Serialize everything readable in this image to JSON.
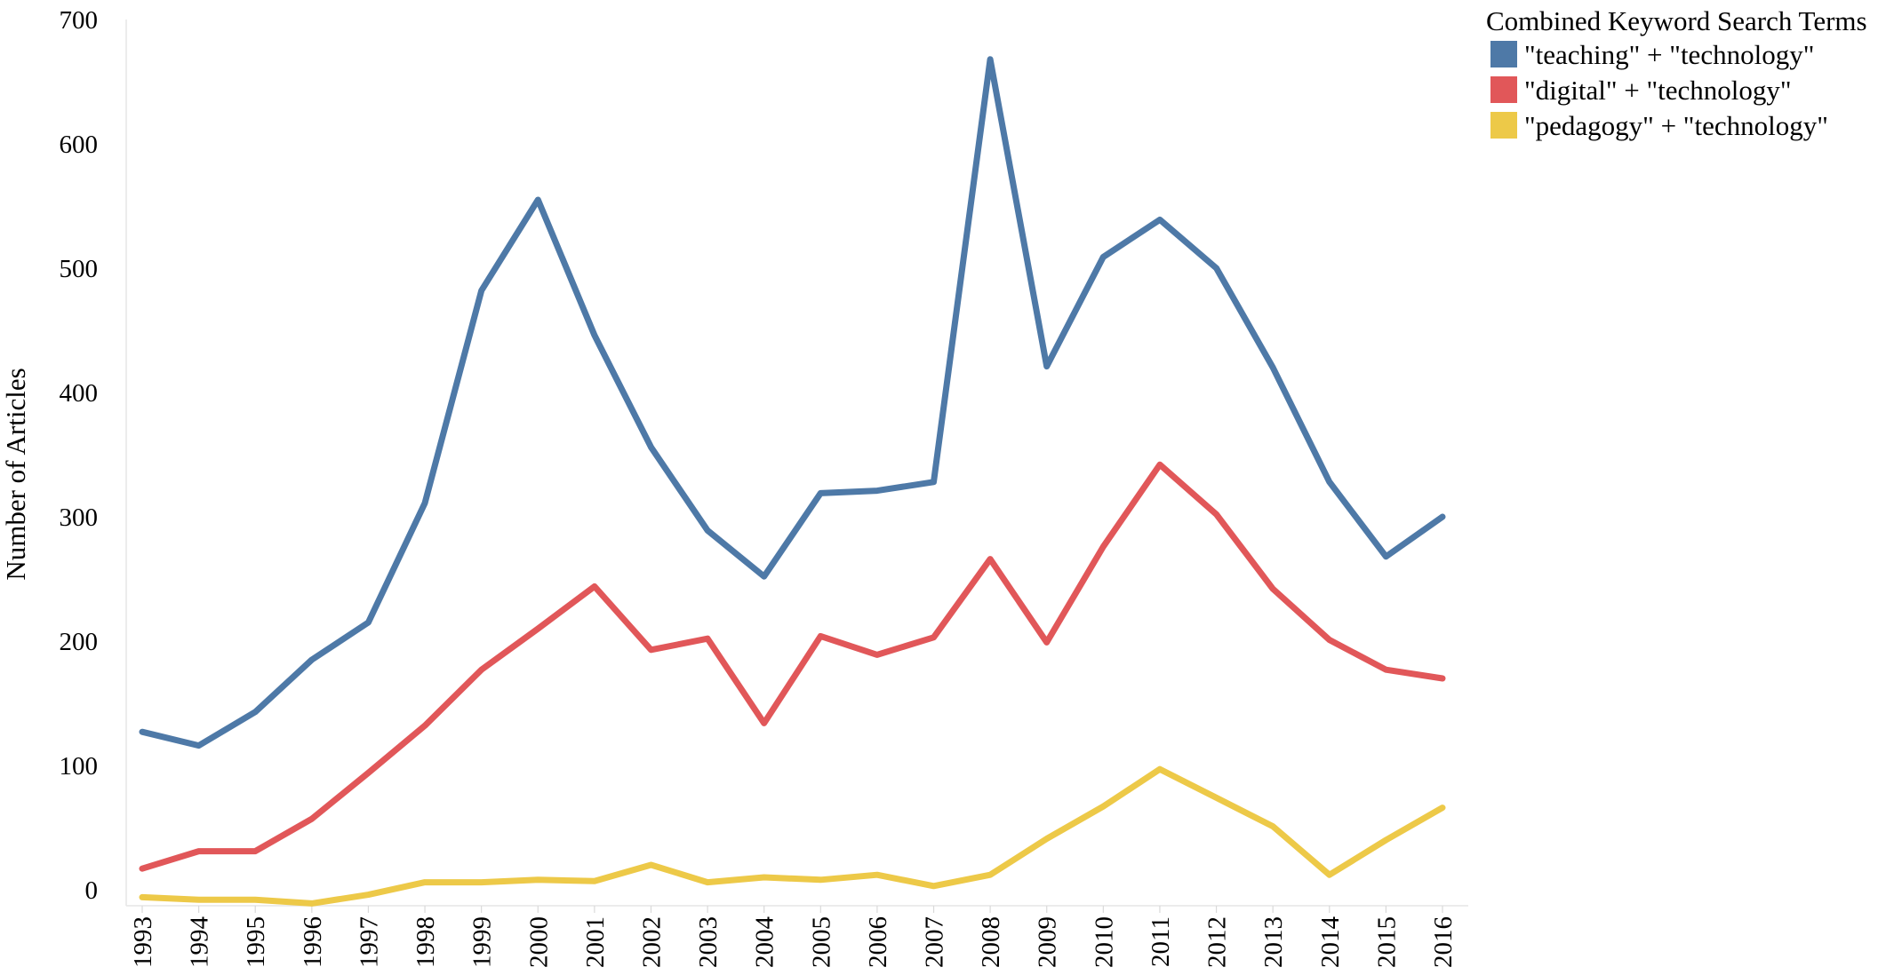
{
  "chart_data": {
    "type": "line",
    "title": "",
    "xlabel": "",
    "ylabel": "Number of Articles",
    "ylim": [
      0,
      700
    ],
    "yticks": [
      0,
      100,
      200,
      300,
      400,
      500,
      600,
      700
    ],
    "ytick_labels": [
      "0",
      "100",
      "200",
      "300",
      "400",
      "500",
      "600",
      "700"
    ],
    "grid": false,
    "legend_placement": "top-right",
    "legend_title": "Combined Keyword Search Terms",
    "categories": [
      "1993",
      "1994",
      "1995",
      "1996",
      "1997",
      "1998",
      "1999",
      "2000",
      "2001",
      "2002",
      "2003",
      "2004",
      "2005",
      "2006",
      "2007",
      "2008",
      "2009",
      "2010",
      "2011",
      "2012",
      "2013",
      "2014",
      "2015",
      "2016"
    ],
    "series": [
      {
        "name": "\"teaching\" + \"technology\"",
        "color": "#4e79a7",
        "values": [
          127,
          116,
          143,
          185,
          215,
          311,
          482,
          555,
          446,
          356,
          289,
          252,
          319,
          321,
          328,
          668,
          421,
          509,
          539,
          500,
          420,
          328,
          268,
          300
        ]
      },
      {
        "name": "\"digital\" + \"technology\"",
        "color": "#e15759",
        "values": [
          17,
          31,
          31,
          57,
          94,
          132,
          177,
          210,
          244,
          193,
          202,
          134,
          204,
          189,
          203,
          266,
          199,
          276,
          342,
          302,
          242,
          201,
          177,
          170
        ]
      },
      {
        "name": "\"pedagogy\" + \"technology\"",
        "color": "#edc948",
        "values": [
          -6,
          -8,
          -8,
          -11,
          -4,
          6,
          6,
          8,
          7,
          20,
          6,
          10,
          8,
          12,
          3,
          12,
          41,
          67,
          97,
          74,
          51,
          12,
          40,
          66
        ]
      }
    ]
  }
}
